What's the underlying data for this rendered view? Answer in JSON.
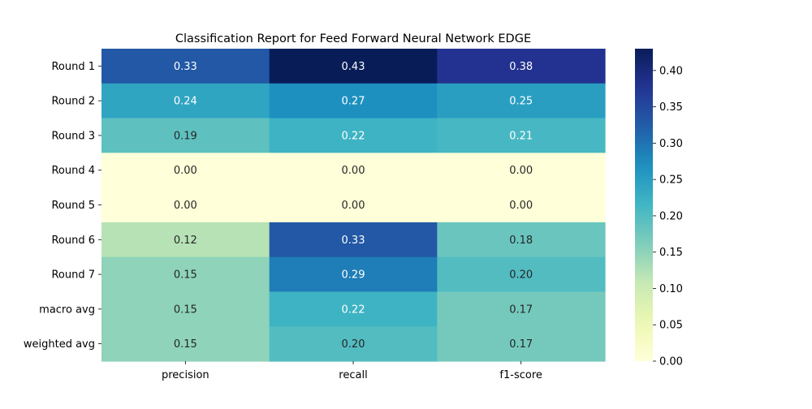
{
  "chart_data": {
    "type": "heatmap",
    "title": "Classification Report for Feed Forward Neural Network EDGE",
    "rows": [
      "Round 1",
      "Round 2",
      "Round 3",
      "Round 4",
      "Round 5",
      "Round 6",
      "Round 7",
      "macro avg",
      "weighted avg"
    ],
    "columns": [
      "precision",
      "recall",
      "f1-score"
    ],
    "values": [
      [
        0.33,
        0.43,
        0.38
      ],
      [
        0.24,
        0.27,
        0.25
      ],
      [
        0.19,
        0.22,
        0.21
      ],
      [
        0.0,
        0.0,
        0.0
      ],
      [
        0.0,
        0.0,
        0.0
      ],
      [
        0.12,
        0.33,
        0.18
      ],
      [
        0.15,
        0.29,
        0.2
      ],
      [
        0.15,
        0.22,
        0.17
      ],
      [
        0.15,
        0.2,
        0.17
      ]
    ],
    "colormap": "YlGnBu",
    "colorbar": {
      "range": [
        0,
        0.43
      ],
      "ticks": [
        0.0,
        0.05,
        0.1,
        0.15,
        0.2,
        0.25,
        0.3,
        0.35,
        0.4
      ],
      "tick_labels": [
        "0.00",
        "0.05",
        "0.10",
        "0.15",
        "0.20",
        "0.25",
        "0.30",
        "0.35",
        "0.40"
      ]
    },
    "annotations": true,
    "value_format": "0.00"
  }
}
